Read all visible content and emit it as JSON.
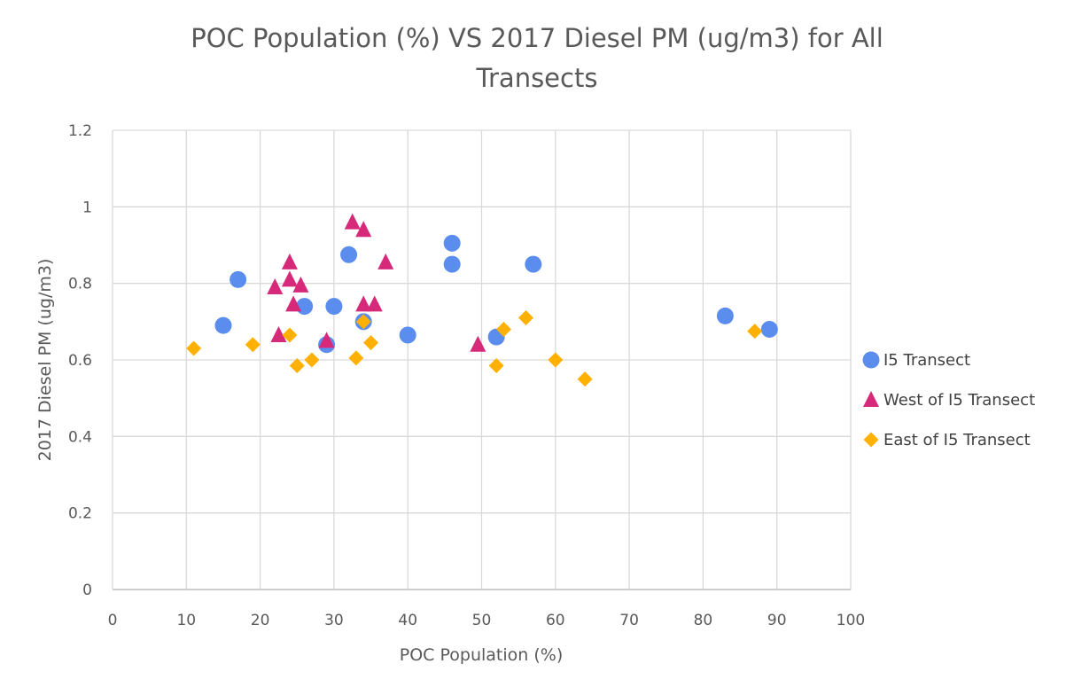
{
  "chart_data": {
    "type": "scatter",
    "title_lines": [
      "POC Population (%) VS 2017 Diesel PM (ug/m3) for All",
      "Transects"
    ],
    "xlabel": "POC Population (%)",
    "ylabel": "2017 Diesel PM (ug/m3)",
    "xlim": [
      0,
      100
    ],
    "ylim": [
      0,
      1.2
    ],
    "x_ticks": [
      "0",
      "10",
      "20",
      "30",
      "40",
      "50",
      "60",
      "70",
      "80",
      "90",
      "100"
    ],
    "y_ticks": [
      "0",
      "0.2",
      "0.4",
      "0.6",
      "0.8",
      "1",
      "1.2"
    ],
    "grid": true,
    "legend_position": "right",
    "series": [
      {
        "name": "I5 Transect",
        "marker": "circle",
        "color": "#5B8DEF",
        "points": [
          [
            15,
            0.69
          ],
          [
            17,
            0.81
          ],
          [
            26,
            0.74
          ],
          [
            29,
            0.64
          ],
          [
            30,
            0.74
          ],
          [
            32,
            0.875
          ],
          [
            34,
            0.7
          ],
          [
            40,
            0.665
          ],
          [
            46,
            0.905
          ],
          [
            46,
            0.85
          ],
          [
            52,
            0.66
          ],
          [
            57,
            0.85
          ],
          [
            83,
            0.715
          ],
          [
            89,
            0.68
          ]
        ]
      },
      {
        "name": "West of I5 Transect",
        "marker": "triangle",
        "color": "#D6297A",
        "points": [
          [
            22,
            0.79
          ],
          [
            22.5,
            0.665
          ],
          [
            24,
            0.855
          ],
          [
            24,
            0.81
          ],
          [
            24.5,
            0.745
          ],
          [
            25.5,
            0.795
          ],
          [
            29,
            0.65
          ],
          [
            32.5,
            0.96
          ],
          [
            34,
            0.94
          ],
          [
            34,
            0.745
          ],
          [
            35.5,
            0.745
          ],
          [
            37,
            0.855
          ],
          [
            49.5,
            0.64
          ]
        ]
      },
      {
        "name": "East of I5 Transect",
        "marker": "diamond",
        "color": "#FFB000",
        "points": [
          [
            11,
            0.63
          ],
          [
            19,
            0.64
          ],
          [
            24,
            0.665
          ],
          [
            25,
            0.585
          ],
          [
            27,
            0.6
          ],
          [
            33,
            0.605
          ],
          [
            34,
            0.7
          ],
          [
            35,
            0.645
          ],
          [
            52,
            0.585
          ],
          [
            53,
            0.68
          ],
          [
            56,
            0.71
          ],
          [
            60,
            0.6
          ],
          [
            64,
            0.55
          ],
          [
            87,
            0.675
          ]
        ]
      }
    ]
  }
}
